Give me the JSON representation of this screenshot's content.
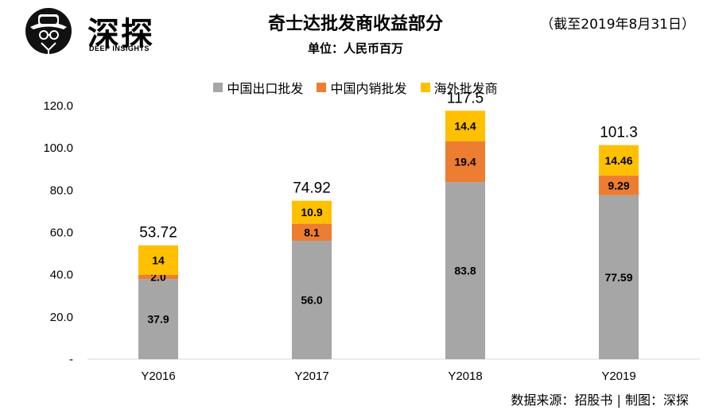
{
  "header": {
    "title": "奇士达批发商收益部分",
    "date_note": "（截至2019年8月31日）",
    "unit": "单位：人民币百万"
  },
  "logo": {
    "name": "深探",
    "subtitle": "DEEP INSIGHTS"
  },
  "footer": {
    "source": "数据来源：招股书 | 制图：深探"
  },
  "colors": {
    "gray": "#a6a6a6",
    "orange": "#ed7d31",
    "yellow": "#ffc000"
  },
  "chart_data": {
    "type": "bar",
    "stacked": true,
    "categories": [
      "Y2016",
      "Y2017",
      "Y2018",
      "Y2019"
    ],
    "series": [
      {
        "name": "中国出口批发",
        "color": "#a6a6a6",
        "values": [
          37.9,
          56.0,
          83.8,
          77.59
        ],
        "labels": [
          "37.9",
          "56.0",
          "83.8",
          "77.59"
        ]
      },
      {
        "name": "中国内销批发",
        "color": "#ed7d31",
        "values": [
          2.0,
          8.1,
          19.4,
          9.29
        ],
        "labels": [
          "2.0",
          "8.1",
          "19.4",
          "9.29"
        ]
      },
      {
        "name": "海外批发商",
        "color": "#ffc000",
        "values": [
          14,
          10.9,
          14.4,
          14.46
        ],
        "labels": [
          "14",
          "10.9",
          "14.4",
          "14.46"
        ]
      }
    ],
    "totals": [
      "53.72",
      "74.92",
      "117.5",
      "101.3"
    ],
    "yticks": [
      "-",
      "20.0",
      "40.0",
      "60.0",
      "80.0",
      "100.0",
      "120.0"
    ],
    "ylim": [
      0,
      120
    ],
    "grid": false,
    "legend": "top"
  }
}
